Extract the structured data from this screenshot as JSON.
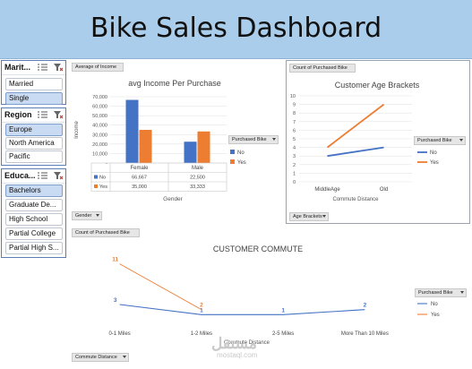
{
  "header": {
    "title": "Bike Sales Dashboard"
  },
  "slicers": [
    {
      "title": "Marit...",
      "items": [
        {
          "label": "Married",
          "selected": false
        },
        {
          "label": "Single",
          "selected": true
        }
      ]
    },
    {
      "title": "Region",
      "items": [
        {
          "label": "Europe",
          "selected": true
        },
        {
          "label": "North America",
          "selected": false
        },
        {
          "label": "Pacific",
          "selected": false
        }
      ]
    },
    {
      "title": "Educa...",
      "items": [
        {
          "label": "Bachelors",
          "selected": true
        },
        {
          "label": "Graduate De...",
          "selected": false
        },
        {
          "label": "High School",
          "selected": false
        },
        {
          "label": "Partial College",
          "selected": false
        },
        {
          "label": "Partial High S...",
          "selected": false
        }
      ]
    }
  ],
  "income_panel": {
    "field_button": "Average of Income",
    "axis_button": "Gender",
    "legend_button": "Purchased Bike",
    "legend_items": [
      "No",
      "Yes"
    ],
    "colors": {
      "No": "#4472c4",
      "Yes": "#ed7d31"
    }
  },
  "age_panel": {
    "field_button": "Count of Purchased Bike",
    "axis_button": "Age Brackets",
    "legend_button": "Purchased Bike",
    "legend_items": [
      "No",
      "Yes"
    ]
  },
  "commute_panel": {
    "field_button": "Count of Purchased Bike",
    "axis_button": "Commute Distance",
    "legend_button": "Purchased Bike",
    "legend_items": [
      "No",
      "Yes"
    ]
  },
  "watermark": {
    "line1": "مستقل",
    "line2": "mostaql.com"
  },
  "chart_data": [
    {
      "type": "bar",
      "title": "avg Income Per Purchase",
      "xlabel": "Gender",
      "ylabel": "Income",
      "categories": [
        "Female",
        "Male"
      ],
      "series": [
        {
          "name": "No",
          "values": [
            66667,
            22500
          ],
          "labels": [
            "66,667",
            "22,500"
          ]
        },
        {
          "name": "Yes",
          "values": [
            35000,
            33333
          ],
          "labels": [
            "35,000",
            "33,333"
          ]
        }
      ],
      "ylim": [
        0,
        70000
      ],
      "yticks": [
        "-",
        "10,000",
        "20,000",
        "30,000",
        "40,000",
        "50,000",
        "60,000",
        "70,000"
      ],
      "grid": true,
      "legend": "right"
    },
    {
      "type": "line",
      "title": "Customer Age Brackets",
      "xlabel": "Commute Distance",
      "categories": [
        "MiddleAge",
        "Old"
      ],
      "series": [
        {
          "name": "No",
          "values": [
            3,
            4
          ]
        },
        {
          "name": "Yes",
          "values": [
            4,
            9
          ]
        }
      ],
      "ylim": [
        0,
        10
      ],
      "yticks": [
        "0",
        "1",
        "2",
        "3",
        "4",
        "5",
        "6",
        "7",
        "8",
        "9",
        "10"
      ],
      "grid": true,
      "legend": "right"
    },
    {
      "type": "line",
      "title": "CUSTOMER COMMUTE",
      "xlabel": "Commute Distance",
      "categories": [
        "0-1 Miles",
        "1-2 Miles",
        "2-5 Miles",
        "More Than 10 Miles"
      ],
      "series": [
        {
          "name": "No",
          "values": [
            3,
            1,
            1,
            2
          ],
          "labels": [
            "3",
            "1",
            "1",
            "2"
          ]
        },
        {
          "name": "Yes",
          "values": [
            11,
            2,
            null,
            null
          ],
          "labels": [
            "11",
            "2",
            "",
            ""
          ]
        }
      ],
      "ylim": [
        0,
        12
      ],
      "grid": false,
      "legend": "right"
    }
  ]
}
